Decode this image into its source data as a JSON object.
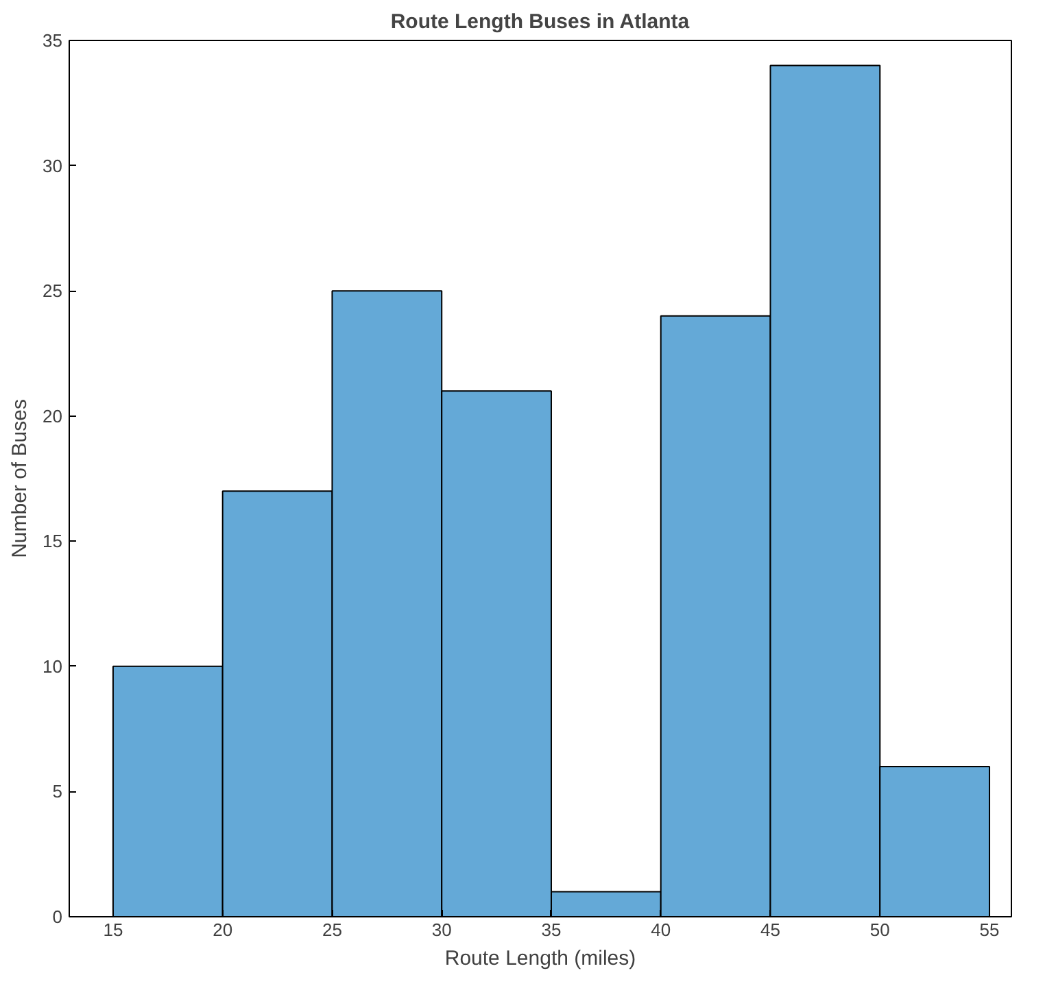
{
  "chart_data": {
    "type": "histogram",
    "title": "Route Length Buses in Atlanta",
    "xlabel": "Route Length (miles)",
    "ylabel": "Number of Buses",
    "bins": [
      15,
      20,
      25,
      30,
      35,
      40,
      45,
      50,
      55
    ],
    "values": [
      10,
      17,
      25,
      21,
      1,
      24,
      34,
      6
    ],
    "color": "#64a9d7",
    "xlim": [
      13,
      56
    ],
    "ylim": [
      0,
      35
    ],
    "xticks": [
      15,
      20,
      25,
      30,
      35,
      40,
      45,
      50,
      55
    ],
    "yticks": [
      0,
      5,
      10,
      15,
      20,
      25,
      30,
      35
    ],
    "grid": false
  }
}
